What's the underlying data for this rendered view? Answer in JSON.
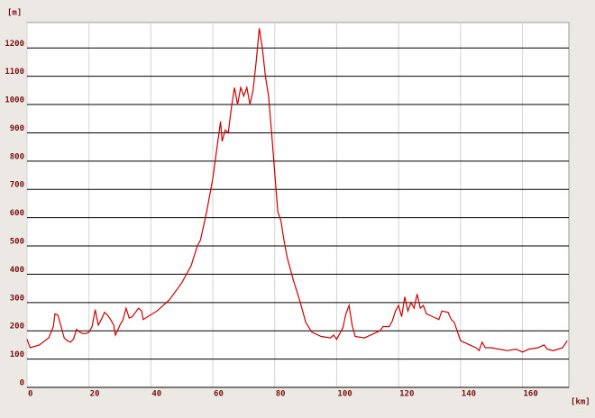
{
  "chart_data": {
    "type": "line",
    "y_unit": "[m]",
    "x_unit": "[km]",
    "color": "#cc0000",
    "x": [
      0,
      1,
      4,
      7,
      8.5,
      9,
      10,
      11,
      12,
      13,
      14,
      15,
      16,
      17,
      18,
      19,
      20,
      21,
      22,
      23,
      24,
      25,
      26,
      27,
      28,
      28.5,
      29,
      30,
      31,
      32,
      33,
      34,
      35,
      36,
      37,
      37.5,
      39,
      42,
      46,
      50,
      53,
      55,
      56,
      58,
      60,
      61,
      62,
      62.5,
      63,
      64,
      65,
      66,
      67,
      68,
      69,
      70,
      71,
      72,
      73,
      74,
      75,
      76,
      77,
      78,
      79,
      80,
      81,
      82,
      83,
      84,
      86,
      88,
      89,
      90,
      92,
      95,
      98,
      99,
      100,
      102,
      103,
      104,
      105,
      106,
      109,
      112,
      114,
      115,
      117,
      118,
      119,
      120,
      121,
      122,
      123,
      124,
      125,
      126,
      127,
      128,
      129,
      131,
      133,
      134,
      136,
      137,
      138,
      140,
      143,
      145,
      146,
      147,
      148,
      150,
      155,
      158,
      160,
      162,
      165,
      167,
      168,
      170,
      173,
      174.5
    ],
    "values": [
      170,
      140,
      150,
      175,
      215,
      260,
      255,
      215,
      175,
      165,
      160,
      170,
      205,
      195,
      190,
      190,
      195,
      215,
      275,
      220,
      240,
      265,
      255,
      240,
      220,
      185,
      195,
      220,
      240,
      280,
      245,
      250,
      265,
      280,
      270,
      240,
      250,
      270,
      310,
      370,
      430,
      500,
      520,
      620,
      740,
      820,
      900,
      940,
      870,
      910,
      900,
      990,
      1060,
      1000,
      1060,
      1030,
      1060,
      1000,
      1050,
      1150,
      1270,
      1200,
      1100,
      1030,
      900,
      760,
      620,
      590,
      520,
      460,
      380,
      310,
      270,
      230,
      195,
      180,
      175,
      185,
      170,
      210,
      260,
      290,
      220,
      180,
      175,
      190,
      200,
      215,
      215,
      235,
      270,
      290,
      250,
      320,
      270,
      300,
      280,
      330,
      280,
      290,
      260,
      250,
      240,
      270,
      265,
      240,
      230,
      165,
      150,
      140,
      130,
      160,
      140,
      140,
      130,
      135,
      125,
      135,
      140,
      150,
      135,
      130,
      140,
      165
    ],
    "xlim": [
      0,
      175
    ],
    "ylim": [
      0,
      1290
    ],
    "xticks": [
      0,
      20,
      40,
      60,
      80,
      100,
      120,
      140,
      160
    ],
    "yticks": [
      0,
      100,
      200,
      300,
      400,
      500,
      600,
      700,
      800,
      900,
      1000,
      1100,
      1200
    ],
    "grid": true
  }
}
